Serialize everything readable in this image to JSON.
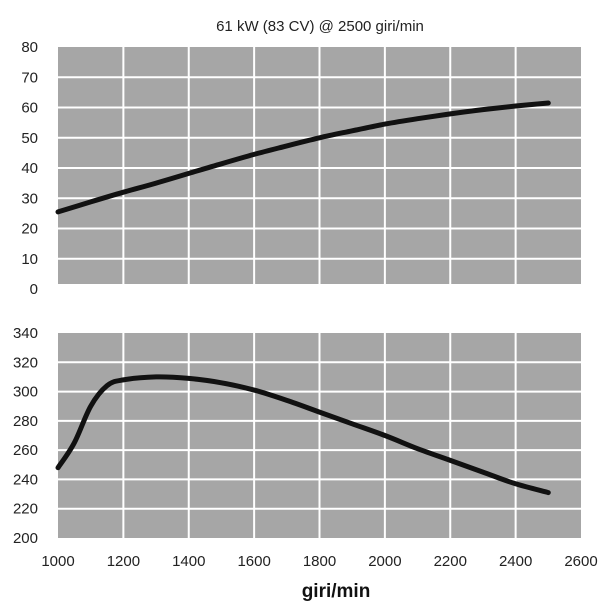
{
  "chart_data": [
    {
      "type": "line",
      "title": "61 kW (83 CV) @ 2500 giri/min",
      "xlabel": "",
      "ylabel": "",
      "xlim": [
        1000,
        2600
      ],
      "ylim": [
        0,
        80
      ],
      "yticks": [
        "0",
        "10",
        "20",
        "30",
        "40",
        "50",
        "60",
        "70",
        "80"
      ],
      "grid": true,
      "series": [
        {
          "x": [
            1000,
            1100,
            1200,
            1300,
            1400,
            1500,
            1600,
            1700,
            1800,
            1900,
            2000,
            2100,
            2200,
            2300,
            2400,
            2500
          ],
          "values": [
            25.5,
            28.8,
            32,
            35,
            38.2,
            41.4,
            44.5,
            47.3,
            50,
            52.3,
            54.5,
            56.3,
            57.9,
            59.3,
            60.5,
            61.5
          ]
        }
      ]
    },
    {
      "type": "line",
      "title": "",
      "xlabel": "giri/min",
      "ylabel": "",
      "xlim": [
        1000,
        2600
      ],
      "ylim": [
        200,
        340
      ],
      "yticks": [
        "200",
        "220",
        "240",
        "260",
        "280",
        "300",
        "320",
        "340"
      ],
      "xticks": [
        "1000",
        "1200",
        "1400",
        "1600",
        "1800",
        "2000",
        "2200",
        "2400",
        "2600"
      ],
      "grid": true,
      "series": [
        {
          "x": [
            1000,
            1050,
            1100,
            1150,
            1200,
            1300,
            1400,
            1500,
            1600,
            1700,
            1800,
            1900,
            2000,
            2100,
            2200,
            2300,
            2400,
            2500
          ],
          "values": [
            248,
            265,
            290,
            304,
            308,
            310,
            309,
            306,
            301,
            294,
            286,
            278,
            270,
            261,
            253,
            245,
            237,
            231
          ]
        }
      ]
    }
  ]
}
